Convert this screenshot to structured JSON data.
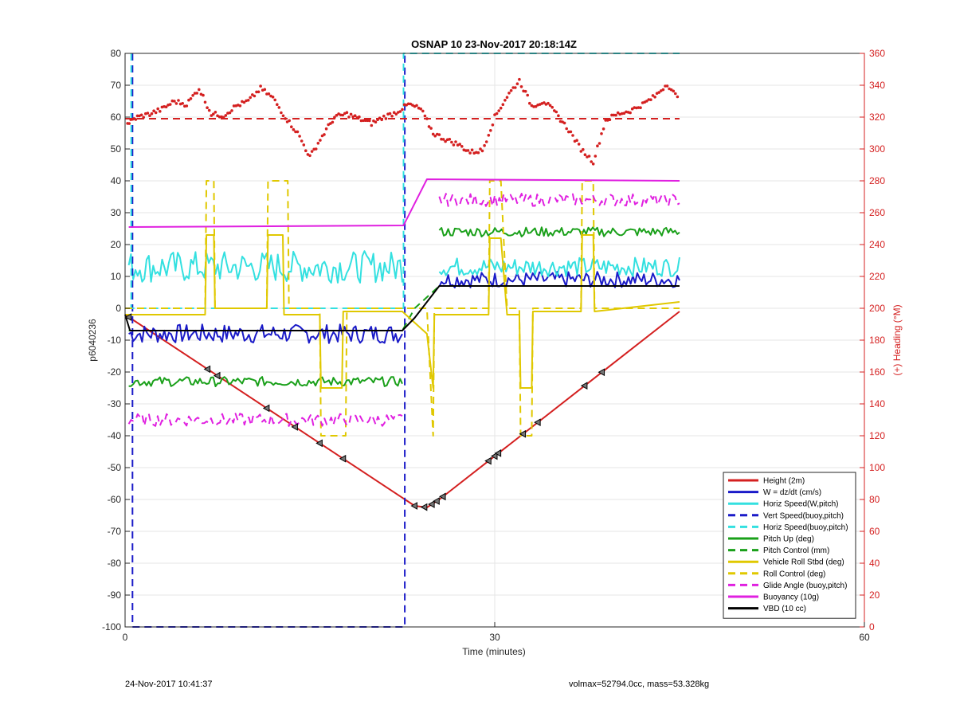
{
  "chart_data": {
    "type": "line",
    "title": "OSNAP 10 23-Nov-2017 20:18:14Z",
    "xlabel": "Time (minutes)",
    "ylabel": "p6040236",
    "y2label": "(+) Heading (°M)",
    "xlim": [
      0,
      60
    ],
    "ylim": [
      -100,
      80
    ],
    "y2lim": [
      0,
      360
    ],
    "xticks": [
      0,
      30,
      60
    ],
    "yticks": [
      -100,
      -90,
      -80,
      -70,
      -60,
      -50,
      -40,
      -30,
      -20,
      -10,
      0,
      10,
      20,
      30,
      40,
      50,
      60,
      70,
      80
    ],
    "y2ticks": [
      0,
      20,
      40,
      60,
      80,
      100,
      120,
      140,
      160,
      180,
      200,
      220,
      240,
      260,
      280,
      300,
      320,
      340,
      360
    ],
    "grid": true,
    "legend_position": "bottom-right",
    "series": [
      {
        "name": "Height (2m)",
        "color": "#d42020",
        "dash": "solid",
        "x": [
          0,
          23.5,
          24.5,
          25.5,
          45
        ],
        "y": [
          -2,
          -62,
          -62.5,
          -60,
          -1
        ]
      },
      {
        "name": "W = dz/dt (cm/s)",
        "color": "#1a1ac8",
        "dash": "solid",
        "style": "noisy",
        "segments": [
          {
            "x": [
              0.3,
              22.5
            ],
            "base": -8,
            "amp": 3
          },
          {
            "x": [
              25.5,
              45
            ],
            "base": 9,
            "amp": 2.5
          }
        ]
      },
      {
        "name": "Horiz Speed(W,pitch)",
        "color": "#33e0e0",
        "dash": "solid",
        "style": "noisy",
        "segments": [
          {
            "x": [
              0.3,
              22.5
            ],
            "base": 13,
            "amp": 5
          },
          {
            "x": [
              25.5,
              45
            ],
            "base": 13,
            "amp": 3
          }
        ]
      },
      {
        "name": "Vert Speed(buoy,pitch)",
        "color": "#1a1ac8",
        "dash": "dashed",
        "x": [
          0.6,
          0.6,
          22.7,
          22.7
        ],
        "y": [
          80,
          -100,
          -100,
          80
        ]
      },
      {
        "name": "Horiz Speed(buoy,pitch)",
        "color": "#33e0e0",
        "dash": "dashed",
        "x": [
          0.5,
          0.5,
          22.6,
          22.6,
          45
        ],
        "y": [
          80,
          0,
          0,
          80,
          80
        ]
      },
      {
        "name": "Pitch Up (deg)",
        "color": "#1aa01a",
        "dash": "solid",
        "style": "noisy",
        "segments": [
          {
            "x": [
              0.3,
              22.5
            ],
            "base": -23,
            "amp": 1.5
          },
          {
            "x": [
              25.5,
              45
            ],
            "base": 24,
            "amp": 1.5
          }
        ]
      },
      {
        "name": "Pitch Control (mm)",
        "color": "#1aa01a",
        "dash": "dashed",
        "x": [
          0.3,
          22.5,
          23.5,
          25.5,
          45
        ],
        "y": [
          -7,
          -7,
          0,
          7,
          7
        ]
      },
      {
        "name": "Vehicle Roll Stbd (deg)",
        "color": "#e0c800",
        "dash": "solid",
        "x": [
          0,
          6.5,
          6.6,
          7.2,
          7.3,
          11.5,
          11.6,
          12.8,
          12.9,
          15.8,
          15.9,
          17.6,
          17.7,
          22.5,
          24.5,
          25,
          25.1,
          29.5,
          29.6,
          30.5,
          31,
          32,
          32.1,
          33,
          33.1,
          37,
          37.1,
          38,
          38.1,
          45
        ],
        "y": [
          -2,
          -2,
          23,
          23,
          0,
          0,
          23,
          23,
          -2,
          -2,
          -25,
          -25,
          -1,
          -1,
          -8,
          -25,
          -2,
          -2,
          22,
          22,
          -2,
          -2,
          -25,
          -25,
          -1,
          -1,
          23,
          23,
          -1,
          2
        ]
      },
      {
        "name": "Roll Control (deg)",
        "color": "#e0c800",
        "dash": "dashed",
        "x": [
          0,
          6.5,
          6.6,
          7.2,
          7.3,
          11.5,
          11.6,
          13.2,
          13.3,
          15.8,
          15.9,
          17.9,
          18,
          22.5,
          24.5,
          25,
          25.1,
          29.5,
          29.6,
          30.5,
          31,
          32,
          32.1,
          33,
          33.1,
          37,
          37.1,
          38,
          38.1,
          45
        ],
        "y": [
          0,
          0,
          40,
          40,
          0,
          0,
          40,
          40,
          0,
          0,
          -40,
          -40,
          0,
          0,
          0,
          -40,
          0,
          0,
          40,
          40,
          0,
          0,
          -40,
          -40,
          0,
          0,
          40,
          40,
          0,
          0
        ]
      },
      {
        "name": "Glide Angle (buoy,pitch)",
        "color": "#e020e0",
        "dash": "dashed",
        "style": "noisy",
        "segments": [
          {
            "x": [
              0.3,
              22.5
            ],
            "base": -35,
            "amp": 2
          },
          {
            "x": [
              25.5,
              45
            ],
            "base": 34,
            "amp": 2
          }
        ]
      },
      {
        "name": "Buoyancy (10g)",
        "color": "#e020e0",
        "dash": "solid",
        "x": [
          0.3,
          22.6,
          24.5,
          45
        ],
        "y": [
          25.5,
          26,
          40.5,
          40
        ]
      },
      {
        "name": "VBD (10 cc)",
        "color": "#000000",
        "dash": "solid",
        "x": [
          0,
          0.4,
          22.5,
          23.5,
          25.5,
          45
        ],
        "y": [
          -2,
          -7,
          -7,
          -3,
          7,
          7
        ]
      }
    ],
    "heading": {
      "axis": "right",
      "color": "#d42020",
      "target": 319,
      "points": [
        [
          0.2,
          316
        ],
        [
          1,
          320
        ],
        [
          2,
          322
        ],
        [
          3,
          325
        ],
        [
          4,
          330
        ],
        [
          5,
          328
        ],
        [
          6,
          338
        ],
        [
          7,
          322
        ],
        [
          8,
          321
        ],
        [
          9,
          327
        ],
        [
          10,
          330
        ],
        [
          11,
          338
        ],
        [
          12,
          332
        ],
        [
          13,
          320
        ],
        [
          14,
          310
        ],
        [
          15,
          295
        ],
        [
          16,
          308
        ],
        [
          17,
          320
        ],
        [
          18,
          322
        ],
        [
          19,
          319
        ],
        [
          20,
          316
        ],
        [
          21,
          320
        ],
        [
          22,
          323
        ],
        [
          23,
          328
        ],
        [
          24,
          325
        ],
        [
          25,
          310
        ],
        [
          26,
          306
        ],
        [
          27,
          303
        ],
        [
          28,
          298
        ],
        [
          29,
          299
        ],
        [
          30,
          320
        ],
        [
          31,
          333
        ],
        [
          32,
          343
        ],
        [
          33,
          327
        ],
        [
          34,
          330
        ],
        [
          35,
          322
        ],
        [
          36,
          312
        ],
        [
          37,
          300
        ],
        [
          38,
          292
        ],
        [
          39,
          318
        ],
        [
          40,
          322
        ],
        [
          41,
          324
        ],
        [
          42,
          328
        ],
        [
          43,
          333
        ],
        [
          44,
          341
        ],
        [
          45,
          330
        ]
      ]
    },
    "markers": {
      "shape": "triangle",
      "x": [
        0.3,
        6.7,
        7.5,
        11.5,
        13.8,
        15.8,
        17.7,
        23.5,
        24.3,
        24.9,
        25.3,
        25.8,
        29.5,
        30,
        30.3,
        32.3,
        33.5,
        37.3,
        38.7
      ]
    }
  },
  "footer": {
    "left": "24-Nov-2017 10:41:37",
    "right": "volmax=52794.0cc, mass=53.328kg"
  }
}
